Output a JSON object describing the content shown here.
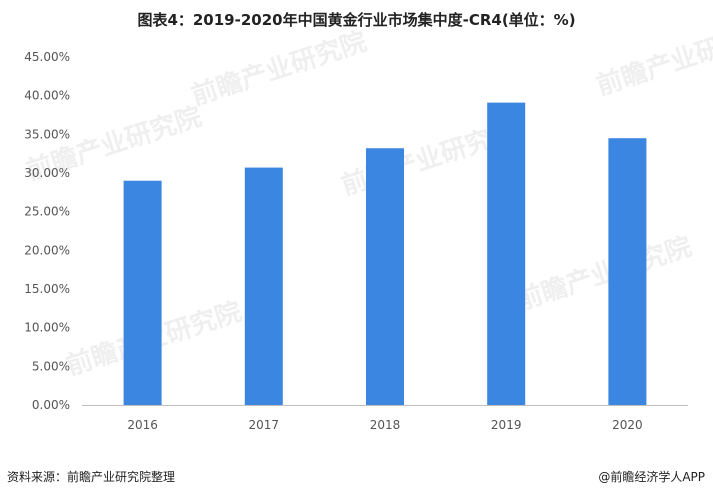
{
  "chart_data": {
    "type": "bar",
    "title": "图表4：2019-2020年中国黄金行业市场集中度-CR4(单位：%)",
    "categories": [
      "2016",
      "2017",
      "2018",
      "2019",
      "2020"
    ],
    "values": [
      29.0,
      30.7,
      33.2,
      39.1,
      34.5
    ],
    "y_ticks": [
      "0.00%",
      "5.00%",
      "10.00%",
      "15.00%",
      "20.00%",
      "25.00%",
      "30.00%",
      "35.00%",
      "40.00%",
      "45.00%"
    ],
    "ylim": [
      0,
      45
    ],
    "bar_color": "#3a86e0",
    "grid": false,
    "legend": "none"
  },
  "watermark": {
    "text": "前瞻产业研究院"
  },
  "footer": {
    "source": "资料来源：前瞻产业研究院整理",
    "brand": "@前瞻经济学人APP"
  }
}
